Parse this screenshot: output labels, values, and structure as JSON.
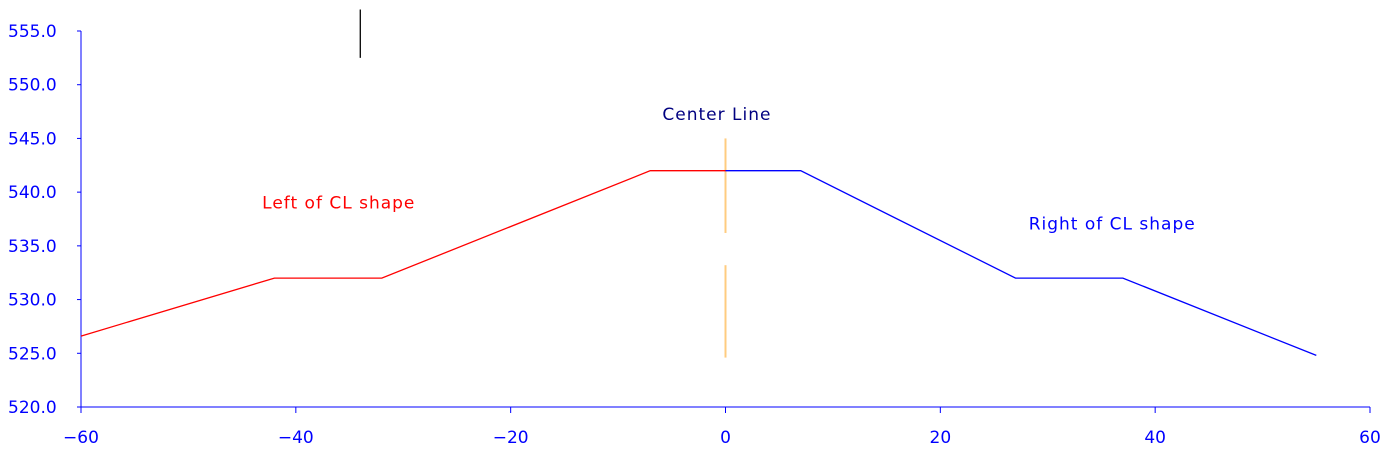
{
  "chart_data": {
    "type": "line",
    "title": "",
    "xlabel": "",
    "ylabel": "",
    "xlim": [
      -60,
      60
    ],
    "ylim": [
      520,
      555
    ],
    "grid": false,
    "x_ticks": [
      -60,
      -40,
      -20,
      0,
      20,
      40,
      60
    ],
    "x_tick_labels": [
      "−60",
      "−40",
      "−20",
      "0",
      "20",
      "40",
      "60"
    ],
    "y_ticks": [
      520,
      525,
      530,
      535,
      540,
      545,
      550,
      555
    ],
    "y_tick_labels": [
      "520.0",
      "525.0",
      "530.0",
      "535.0",
      "540.0",
      "545.0",
      "550.0",
      "555.0"
    ],
    "series": [
      {
        "name": "Left of CL shape",
        "color": "#ff0000",
        "x": [
          -60,
          -42,
          -32,
          -7,
          0
        ],
        "y": [
          526.6,
          532,
          532,
          542,
          542
        ]
      },
      {
        "name": "Right of CL shape",
        "color": "#0000ff",
        "x": [
          0,
          7,
          27,
          37,
          55
        ],
        "y": [
          542,
          542,
          532,
          532,
          524.8
        ]
      }
    ],
    "center_line": {
      "label": "Center Line",
      "color": "#ffcc80",
      "x": 0,
      "segments": [
        [
          536.2,
          545
        ],
        [
          524.6,
          533.2
        ]
      ]
    },
    "marker": {
      "color": "#000000",
      "x": -34,
      "y_range": [
        552.5,
        557
      ]
    },
    "annotations": [
      {
        "text": "Left of CL shape",
        "x": -36,
        "y": 538.5,
        "color": "#ff0000"
      },
      {
        "text": "Right of CL shape",
        "x": 36,
        "y": 536.5,
        "color": "#0000ff"
      },
      {
        "text": "Center Line",
        "x": -0.8,
        "y": 546.7,
        "color": "#000080"
      }
    ],
    "axis_color": "#0000ff"
  }
}
